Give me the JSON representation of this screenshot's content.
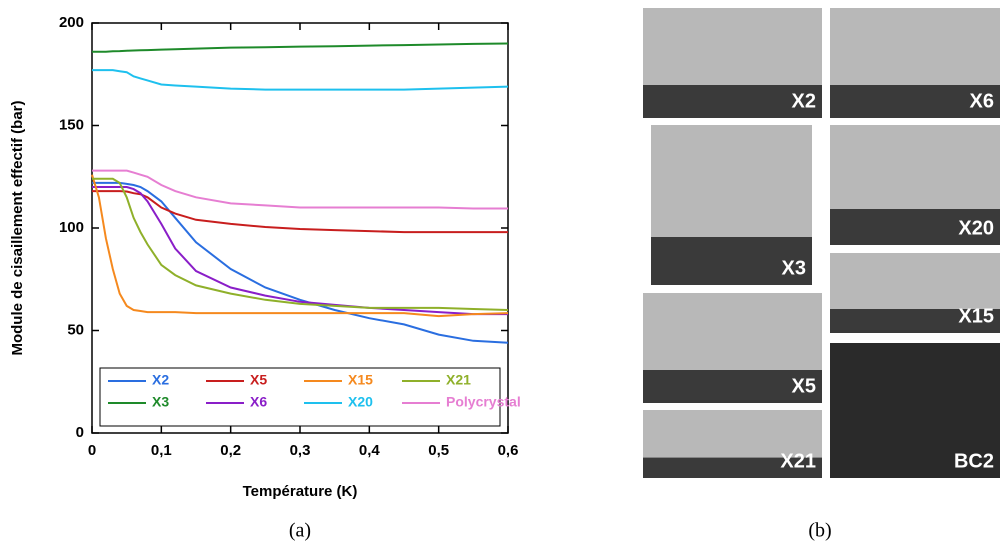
{
  "chart_data": {
    "type": "line",
    "ylabel": "Module de cisaillement effectif (bar)",
    "xlabel": "Température (K)",
    "x": [
      0,
      0.01,
      0.02,
      0.03,
      0.04,
      0.05,
      0.06,
      0.07,
      0.08,
      0.1,
      0.12,
      0.15,
      0.2,
      0.25,
      0.3,
      0.35,
      0.4,
      0.45,
      0.5,
      0.55,
      0.6
    ],
    "series": [
      {
        "name": "X2",
        "color": "#2a6ee0",
        "values": [
          122,
          122,
          122,
          122,
          122,
          121.5,
          121,
          120,
          118,
          113,
          105,
          93,
          80,
          71,
          65,
          60,
          56,
          53,
          48,
          45,
          44
        ]
      },
      {
        "name": "X3",
        "color": "#1e8a2a",
        "values": [
          186,
          186,
          186,
          186.2,
          186.3,
          186.5,
          186.6,
          186.7,
          186.8,
          187,
          187.2,
          187.5,
          188,
          188.2,
          188.5,
          188.7,
          189,
          189.2,
          189.5,
          189.8,
          190
        ]
      },
      {
        "name": "X5",
        "color": "#c81e1e",
        "values": [
          118,
          118,
          118,
          118,
          118,
          117.8,
          117,
          116.5,
          115,
          110,
          107,
          104,
          102,
          100.5,
          99.5,
          99,
          98.5,
          98,
          98,
          98,
          98
        ]
      },
      {
        "name": "X6",
        "color": "#8a1ec8",
        "values": [
          120,
          120,
          120,
          120,
          120,
          120,
          119,
          117,
          113,
          102,
          90,
          79,
          71,
          67,
          64,
          62.5,
          61,
          60,
          59,
          58,
          58
        ]
      },
      {
        "name": "X15",
        "color": "#f5891e",
        "values": [
          126,
          115,
          95,
          80,
          68,
          62,
          60,
          59.5,
          59,
          59,
          59,
          58.5,
          58.5,
          58.5,
          58.5,
          58.5,
          58.5,
          58.5,
          57,
          58,
          58.5
        ]
      },
      {
        "name": "X20",
        "color": "#1ec0ee",
        "values": [
          177,
          177,
          177,
          177,
          176.5,
          176,
          174,
          173,
          172,
          170,
          169.5,
          169,
          168,
          167.5,
          167.5,
          167.5,
          167.5,
          167.5,
          168,
          168.5,
          169
        ]
      },
      {
        "name": "X21",
        "color": "#8fb02a",
        "values": [
          124,
          124,
          124,
          124,
          122,
          115,
          105,
          98,
          92,
          82,
          77,
          72,
          68,
          65,
          63,
          62,
          61,
          61,
          61,
          60.5,
          60
        ]
      },
      {
        "name": "Polycrystal",
        "color": "#e67ed2",
        "values": [
          128,
          128,
          128,
          128,
          128,
          128,
          127,
          126,
          125,
          121,
          118,
          115,
          112,
          111,
          110,
          110,
          110,
          110,
          110,
          109.5,
          109.5
        ]
      }
    ],
    "xlim": [
      0,
      0.6
    ],
    "xticks": [
      0,
      {
        "value": 0.1,
        "label": "0,1"
      },
      {
        "value": 0.2,
        "label": "0,2"
      },
      {
        "value": 0.3,
        "label": "0,3"
      },
      {
        "value": 0.4,
        "label": "0,4"
      },
      {
        "value": 0.5,
        "label": "0,5"
      },
      {
        "value": 0.6,
        "label": "0,6"
      }
    ],
    "ylim": [
      0,
      200
    ],
    "yticks": [
      0,
      50,
      100,
      150,
      200
    ],
    "grid": false,
    "legend": "bottom"
  },
  "figure": {
    "captions": [
      "(a)",
      "(b)"
    ],
    "photos": [
      {
        "label": "X2"
      },
      {
        "label": "X6"
      },
      {
        "label": "X3"
      },
      {
        "label": "X20"
      },
      {
        "label": "X15"
      },
      {
        "label": "X5"
      },
      {
        "label": "BC2"
      },
      {
        "label": "X21"
      }
    ]
  }
}
